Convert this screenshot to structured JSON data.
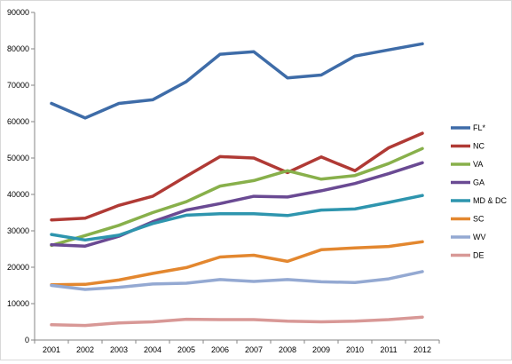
{
  "chart_data": {
    "type": "line",
    "title": "",
    "xlabel": "",
    "ylabel": "",
    "categories": [
      "2001",
      "2002",
      "2003",
      "2004",
      "2005",
      "2006",
      "2007",
      "2008",
      "2009",
      "2010",
      "2011",
      "2012"
    ],
    "ylim": [
      0,
      90000
    ],
    "yticks": [
      0,
      10000,
      20000,
      30000,
      40000,
      50000,
      60000,
      70000,
      80000,
      90000
    ],
    "y_tick_labels": [
      "0",
      "10000",
      "20000",
      "30000",
      "40000",
      "50000",
      "60000",
      "70000",
      "80000",
      "90000"
    ],
    "grid": false,
    "legend_position": "right",
    "series": [
      {
        "name": "FL*",
        "color": "#3E6CA8",
        "values": [
          65000,
          61000,
          65000,
          66000,
          71000,
          78500,
          79200,
          72000,
          72800,
          78000,
          79700,
          81400
        ]
      },
      {
        "name": "NC",
        "color": "#B03A35",
        "values": [
          33000,
          33500,
          37000,
          39500,
          45000,
          50400,
          50000,
          46000,
          50300,
          46500,
          52800,
          56800
        ]
      },
      {
        "name": "VA",
        "color": "#88B04B",
        "values": [
          26000,
          28700,
          31500,
          35000,
          38000,
          42300,
          43800,
          46500,
          44200,
          45200,
          48500,
          52600
        ]
      },
      {
        "name": "GA",
        "color": "#6A4A93",
        "values": [
          26200,
          25800,
          28500,
          32500,
          35700,
          37500,
          39500,
          39300,
          41000,
          43000,
          45700,
          48700
        ]
      },
      {
        "name": "MD & DC",
        "color": "#2E95AE",
        "values": [
          29000,
          27500,
          28800,
          32000,
          34300,
          34700,
          34700,
          34200,
          35700,
          36000,
          37800,
          39700
        ]
      },
      {
        "name": "SC",
        "color": "#E3872F",
        "values": [
          15200,
          15300,
          16500,
          18300,
          19900,
          22800,
          23300,
          21600,
          24800,
          25300,
          25700,
          27000
        ]
      },
      {
        "name": "WV",
        "color": "#94A9D2",
        "values": [
          15000,
          13900,
          14500,
          15400,
          15600,
          16600,
          16100,
          16600,
          16000,
          15800,
          16800,
          18800
        ]
      },
      {
        "name": "DE",
        "color": "#D89896",
        "values": [
          4200,
          4000,
          4700,
          5000,
          5700,
          5600,
          5600,
          5200,
          5000,
          5200,
          5600,
          6300
        ]
      }
    ]
  }
}
